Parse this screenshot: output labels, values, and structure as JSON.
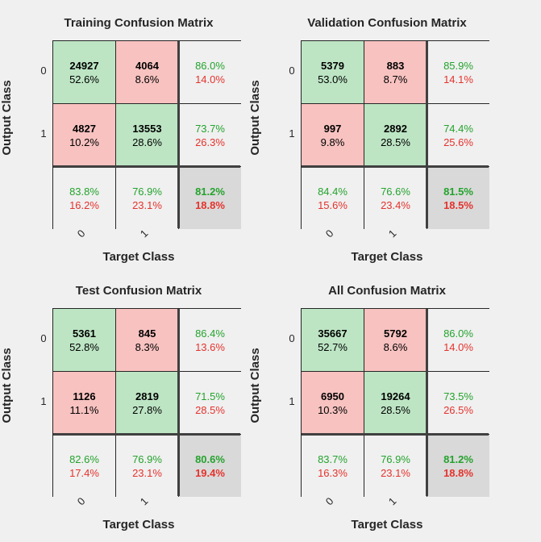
{
  "chart_data": [
    {
      "type": "table",
      "title": "Training Confusion Matrix",
      "xlabel": "Target Class",
      "ylabel": "Output Class",
      "classes": [
        "0",
        "1"
      ],
      "cells": [
        [
          {
            "count": "24927",
            "pct": "52.6%"
          },
          {
            "count": "4064",
            "pct": "8.6%"
          }
        ],
        [
          {
            "count": "4827",
            "pct": "10.2%"
          },
          {
            "count": "13553",
            "pct": "28.6%"
          }
        ]
      ],
      "row_summary": [
        {
          "correct": "86.0%",
          "wrong": "14.0%"
        },
        {
          "correct": "73.7%",
          "wrong": "26.3%"
        }
      ],
      "col_summary": [
        {
          "correct": "83.8%",
          "wrong": "16.2%"
        },
        {
          "correct": "76.9%",
          "wrong": "23.1%"
        }
      ],
      "total": {
        "correct": "81.2%",
        "wrong": "18.8%"
      }
    },
    {
      "type": "table",
      "title": "Validation Confusion Matrix",
      "xlabel": "Target Class",
      "ylabel": "Output Class",
      "classes": [
        "0",
        "1"
      ],
      "cells": [
        [
          {
            "count": "5379",
            "pct": "53.0%"
          },
          {
            "count": "883",
            "pct": "8.7%"
          }
        ],
        [
          {
            "count": "997",
            "pct": "9.8%"
          },
          {
            "count": "2892",
            "pct": "28.5%"
          }
        ]
      ],
      "row_summary": [
        {
          "correct": "85.9%",
          "wrong": "14.1%"
        },
        {
          "correct": "74.4%",
          "wrong": "25.6%"
        }
      ],
      "col_summary": [
        {
          "correct": "84.4%",
          "wrong": "15.6%"
        },
        {
          "correct": "76.6%",
          "wrong": "23.4%"
        }
      ],
      "total": {
        "correct": "81.5%",
        "wrong": "18.5%"
      }
    },
    {
      "type": "table",
      "title": "Test Confusion Matrix",
      "xlabel": "Target Class",
      "ylabel": "Output Class",
      "classes": [
        "0",
        "1"
      ],
      "cells": [
        [
          {
            "count": "5361",
            "pct": "52.8%"
          },
          {
            "count": "845",
            "pct": "8.3%"
          }
        ],
        [
          {
            "count": "1126",
            "pct": "11.1%"
          },
          {
            "count": "2819",
            "pct": "27.8%"
          }
        ]
      ],
      "row_summary": [
        {
          "correct": "86.4%",
          "wrong": "13.6%"
        },
        {
          "correct": "71.5%",
          "wrong": "28.5%"
        }
      ],
      "col_summary": [
        {
          "correct": "82.6%",
          "wrong": "17.4%"
        },
        {
          "correct": "76.9%",
          "wrong": "23.1%"
        }
      ],
      "total": {
        "correct": "80.6%",
        "wrong": "19.4%"
      }
    },
    {
      "type": "table",
      "title": "All Confusion Matrix",
      "xlabel": "Target Class",
      "ylabel": "Output Class",
      "classes": [
        "0",
        "1"
      ],
      "cells": [
        [
          {
            "count": "35667",
            "pct": "52.7%"
          },
          {
            "count": "5792",
            "pct": "8.6%"
          }
        ],
        [
          {
            "count": "6950",
            "pct": "10.3%"
          },
          {
            "count": "19264",
            "pct": "28.5%"
          }
        ]
      ],
      "row_summary": [
        {
          "correct": "86.0%",
          "wrong": "14.0%"
        },
        {
          "correct": "73.5%",
          "wrong": "26.5%"
        }
      ],
      "col_summary": [
        {
          "correct": "83.7%",
          "wrong": "16.3%"
        },
        {
          "correct": "76.9%",
          "wrong": "23.1%"
        }
      ],
      "total": {
        "correct": "81.2%",
        "wrong": "18.8%"
      }
    }
  ],
  "colors": {
    "correct_cell": "#bde5c4",
    "wrong_cell": "#f7c2c0",
    "summary_cell": "#f0f0f0",
    "total_cell": "#d9d9d9",
    "correct_text": "#24a32d",
    "wrong_text": "#e4332d"
  }
}
